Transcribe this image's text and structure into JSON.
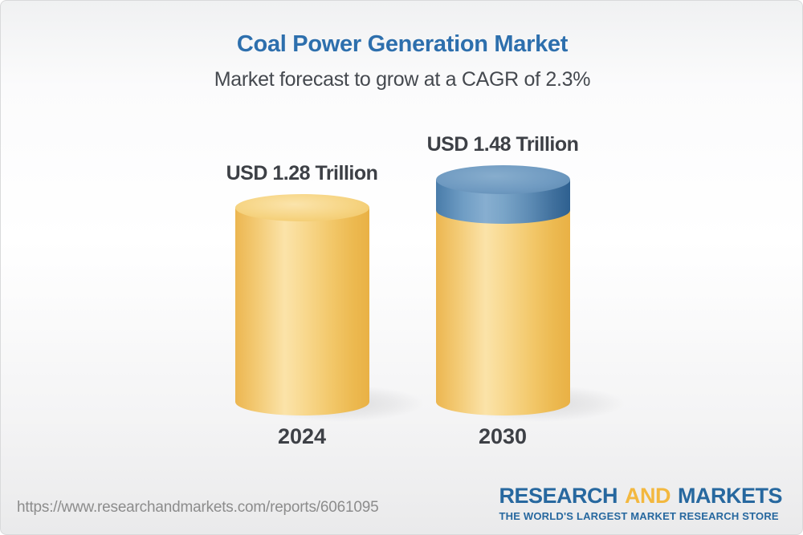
{
  "title": "Coal Power Generation Market",
  "subtitle": "Market forecast to grow at a CAGR of 2.3%",
  "footer": {
    "source_url": "https://www.researchandmarkets.com/reports/6061095",
    "logo": {
      "word1": "RESEARCH",
      "word2": "AND",
      "word3": "MARKETS",
      "tagline": "THE WORLD'S LARGEST MARKET RESEARCH STORE"
    }
  },
  "chart_data": {
    "type": "bar",
    "bar_style": "3d-cylinder",
    "title": "Coal Power Generation Market",
    "subtitle": "Market forecast to grow at a CAGR of 2.3%",
    "unit": "USD Trillion",
    "cagr_percent": 2.3,
    "categories": [
      "2024",
      "2030"
    ],
    "values": [
      1.28,
      1.48
    ],
    "bars": [
      {
        "year": "2024",
        "label": "USD 1.28 Trillion",
        "value": 1.28,
        "segments": [
          {
            "name": "base",
            "value": 1.28
          }
        ]
      },
      {
        "year": "2030",
        "label": "USD 1.48 Trillion",
        "value": 1.48,
        "segments": [
          {
            "name": "base",
            "value": 1.28
          },
          {
            "name": "growth",
            "value": 0.2
          }
        ]
      }
    ],
    "colors": {
      "base_segment": "#f3c768",
      "growth_segment": "#6f9ac1",
      "title": "#2d6fad",
      "text": "#3d4046",
      "logo_blue": "#27689f",
      "logo_yellow": "#f3b83f"
    },
    "legend": "none",
    "grid": "off",
    "ylim": [
      0,
      1.48
    ]
  }
}
